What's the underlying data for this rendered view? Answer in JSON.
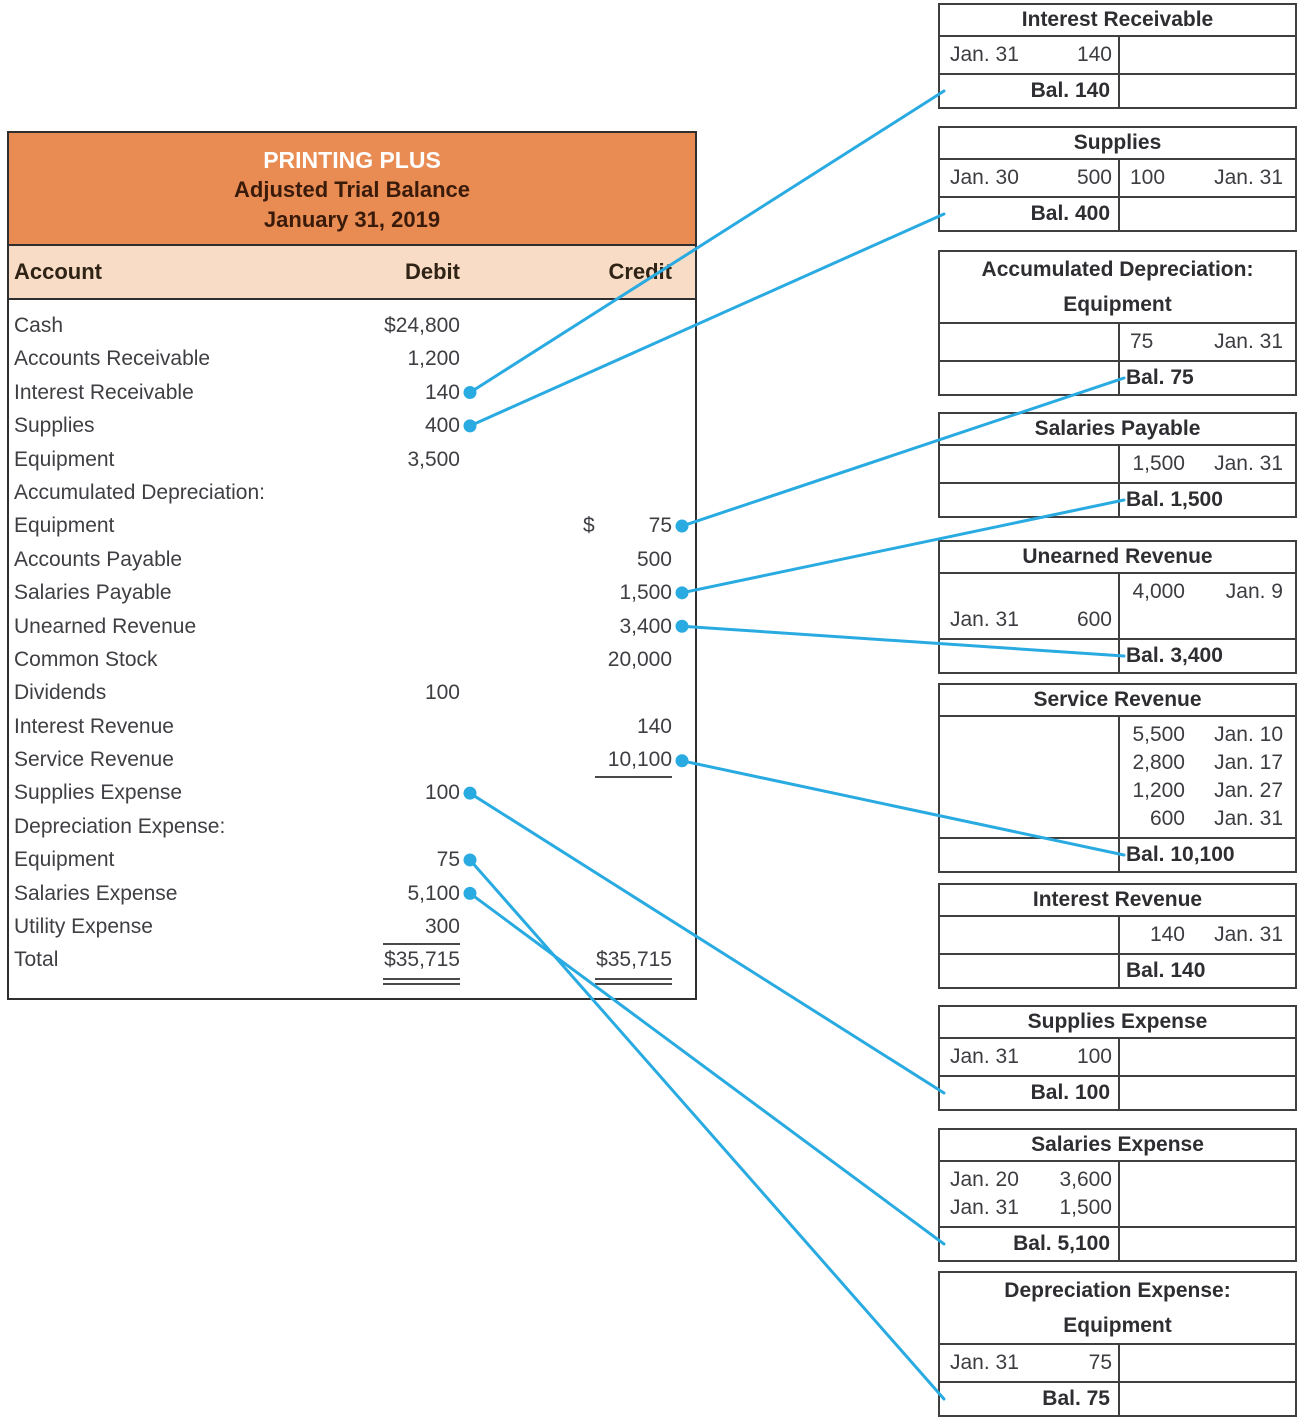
{
  "accent_blue": "#29ABE2",
  "trial_balance": {
    "title": "PRINTING PLUS",
    "subtitle": "Adjusted Trial Balance",
    "date": "January 31, 2019",
    "columns": {
      "account": "Account",
      "debit": "Debit",
      "credit": "Credit"
    },
    "rows": [
      {
        "id": "cash",
        "name": "Cash",
        "debit": "$24,800"
      },
      {
        "id": "accounts-receivable",
        "name": "Accounts Receivable",
        "debit": "1,200"
      },
      {
        "id": "interest-receivable",
        "name": "Interest Receivable",
        "debit": "140",
        "dot": "debit"
      },
      {
        "id": "supplies",
        "name": "Supplies",
        "debit": "400",
        "dot": "debit"
      },
      {
        "id": "equipment",
        "name": "Equipment",
        "debit": "3,500"
      },
      {
        "id": "accumulated-depreciation-label",
        "name": "Accumulated Depreciation:"
      },
      {
        "id": "accumulated-depreciation-equipment",
        "name": "Equipment",
        "credit": "75",
        "credit_dollar": "$",
        "dot": "credit"
      },
      {
        "id": "accounts-payable",
        "name": "Accounts Payable",
        "credit": "500"
      },
      {
        "id": "salaries-payable",
        "name": "Salaries Payable",
        "credit": "1,500",
        "dot": "credit"
      },
      {
        "id": "unearned-revenue",
        "name": "Unearned Revenue",
        "credit": "3,400",
        "dot": "credit"
      },
      {
        "id": "common-stock",
        "name": "Common Stock",
        "credit": "20,000"
      },
      {
        "id": "dividends",
        "name": "Dividends",
        "debit": "100"
      },
      {
        "id": "interest-revenue",
        "name": "Interest Revenue",
        "credit": "140"
      },
      {
        "id": "service-revenue",
        "name": "Service Revenue",
        "credit": "10,100",
        "credit_underline": true,
        "dot": "credit"
      },
      {
        "id": "supplies-expense",
        "name": "Supplies Expense",
        "debit": "100",
        "dot": "debit"
      },
      {
        "id": "depreciation-expense-label",
        "name": "Depreciation Expense:"
      },
      {
        "id": "depreciation-expense-equipment",
        "name": "Equipment",
        "debit": "75",
        "dot": "debit"
      },
      {
        "id": "salaries-expense",
        "name": "Salaries Expense",
        "debit": "5,100",
        "dot": "debit"
      },
      {
        "id": "utility-expense",
        "name": "Utility Expense",
        "debit": "300",
        "debit_underline": true
      },
      {
        "id": "total",
        "name": "Total",
        "debit": "$35,715",
        "debit_double": true,
        "credit": "$35,715",
        "credit_double": true
      }
    ]
  },
  "t_accounts": [
    {
      "id": "t-interest-receivable",
      "title": [
        "Interest Receivable"
      ],
      "entries": [
        {
          "left": {
            "date": "Jan. 31",
            "amount": "140"
          }
        }
      ],
      "balance": {
        "side": "left",
        "label": "Bal. 140"
      }
    },
    {
      "id": "t-supplies",
      "title": [
        "Supplies"
      ],
      "entries": [
        {
          "left": {
            "date": "Jan. 30",
            "amount": "500"
          },
          "right": {
            "amount": "100",
            "date": "Jan. 31"
          }
        }
      ],
      "balance": {
        "side": "left",
        "label": "Bal. 400"
      }
    },
    {
      "id": "t-accumulated-depreciation",
      "title": [
        "Accumulated Depreciation:",
        "Equipment"
      ],
      "entries": [
        {
          "right": {
            "amount": "75",
            "date": "Jan. 31"
          }
        }
      ],
      "balance": {
        "side": "right",
        "label": "Bal. 75"
      }
    },
    {
      "id": "t-salaries-payable",
      "title": [
        "Salaries Payable"
      ],
      "entries": [
        {
          "right": {
            "amount": "1,500",
            "date": "Jan. 31"
          }
        }
      ],
      "balance": {
        "side": "right",
        "label": "Bal. 1,500"
      }
    },
    {
      "id": "t-unearned-revenue",
      "title": [
        "Unearned Revenue"
      ],
      "entries": [
        {
          "right": {
            "amount": "4,000",
            "date": "Jan. 9"
          }
        },
        {
          "left": {
            "date": "Jan. 31",
            "amount": "600"
          }
        }
      ],
      "balance": {
        "side": "right",
        "label": "Bal. 3,400"
      }
    },
    {
      "id": "t-service-revenue",
      "title": [
        "Service Revenue"
      ],
      "entries": [
        {
          "right": {
            "amount": "5,500",
            "date": "Jan. 10"
          }
        },
        {
          "right": {
            "amount": "2,800",
            "date": "Jan. 17"
          }
        },
        {
          "right": {
            "amount": "1,200",
            "date": "Jan. 27"
          }
        },
        {
          "right": {
            "amount": "600",
            "date": "Jan. 31"
          }
        }
      ],
      "balance": {
        "side": "right",
        "label": "Bal. 10,100"
      }
    },
    {
      "id": "t-interest-revenue",
      "title": [
        "Interest Revenue"
      ],
      "entries": [
        {
          "right": {
            "amount": "140",
            "date": "Jan. 31"
          }
        }
      ],
      "balance": {
        "side": "right",
        "label": "Bal. 140"
      }
    },
    {
      "id": "t-supplies-expense",
      "title": [
        "Supplies Expense"
      ],
      "entries": [
        {
          "left": {
            "date": "Jan. 31",
            "amount": "100"
          }
        }
      ],
      "balance": {
        "side": "left",
        "label": "Bal. 100"
      }
    },
    {
      "id": "t-salaries-expense",
      "title": [
        "Salaries Expense"
      ],
      "entries": [
        {
          "left": {
            "date": "Jan. 20",
            "amount": "3,600"
          }
        },
        {
          "left": {
            "date": "Jan. 31",
            "amount": "1,500"
          }
        }
      ],
      "balance": {
        "side": "left",
        "label": "Bal. 5,100"
      }
    },
    {
      "id": "t-depreciation-expense",
      "title": [
        "Depreciation Expense:",
        "Equipment"
      ],
      "entries": [
        {
          "left": {
            "date": "Jan. 31",
            "amount": "75"
          }
        }
      ],
      "balance": {
        "side": "left",
        "label": "Bal. 75"
      }
    }
  ],
  "connections": [
    {
      "from": "interest-receivable",
      "to": "t-interest-receivable"
    },
    {
      "from": "supplies",
      "to": "t-supplies"
    },
    {
      "from": "accumulated-depreciation-equipment",
      "to": "t-accumulated-depreciation"
    },
    {
      "from": "salaries-payable",
      "to": "t-salaries-payable"
    },
    {
      "from": "unearned-revenue",
      "to": "t-unearned-revenue"
    },
    {
      "from": "service-revenue",
      "to": "t-service-revenue"
    },
    {
      "from": "supplies-expense",
      "to": "t-supplies-expense"
    },
    {
      "from": "depreciation-expense-equipment",
      "to": "t-depreciation-expense"
    },
    {
      "from": "salaries-expense",
      "to": "t-salaries-expense"
    }
  ]
}
